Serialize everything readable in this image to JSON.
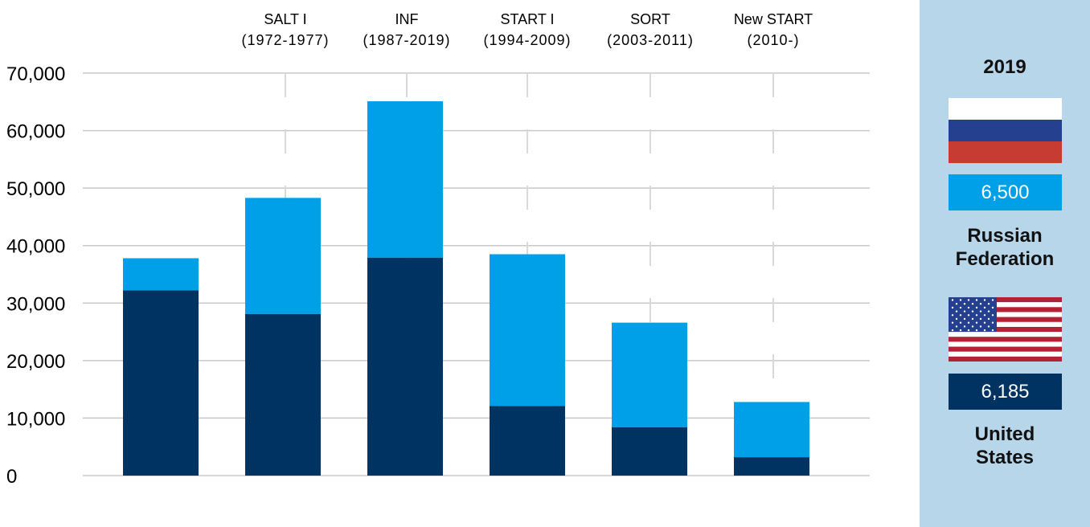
{
  "colors": {
    "russia": "#00a0e9",
    "usa": "#003262",
    "grid": "#c8c8c8",
    "panel_bg": "#b8d6ea",
    "flag_white": "#ffffff",
    "flag_blue": "#25408f",
    "flag_red": "#c63b32",
    "us_red": "#b22234"
  },
  "chart_data": {
    "type": "bar",
    "stacked": true,
    "ylim": [
      0,
      70000
    ],
    "yticks": [
      "0",
      "10,000",
      "20,000",
      "30,000",
      "40,000",
      "50,000",
      "60,000",
      "70,000"
    ],
    "ytick_values": [
      0,
      10000,
      20000,
      30000,
      40000,
      50000,
      60000,
      70000
    ],
    "grid": true,
    "series": [
      {
        "key": "usa",
        "values": [
          32200,
          28100,
          37900,
          12100,
          8400,
          3200
        ]
      },
      {
        "key": "russia",
        "values": [
          5600,
          20200,
          27200,
          26400,
          18200,
          9600
        ]
      }
    ],
    "treaties": [
      {
        "name": "SALT I",
        "years": "(1972-1977)"
      },
      {
        "name": "INF",
        "years": "(1987-2019)"
      },
      {
        "name": "START I",
        "years": "(1994-2009)"
      },
      {
        "name": "SORT",
        "years": "(2003-2011)"
      },
      {
        "name": "New START",
        "years": "(2010-)"
      }
    ]
  },
  "panel": {
    "year": "2019",
    "russia": {
      "value": "6,500",
      "label_line1": "Russian",
      "label_line2": "Federation"
    },
    "usa": {
      "value": "6,185",
      "label_line1": "United",
      "label_line2": "States"
    }
  }
}
